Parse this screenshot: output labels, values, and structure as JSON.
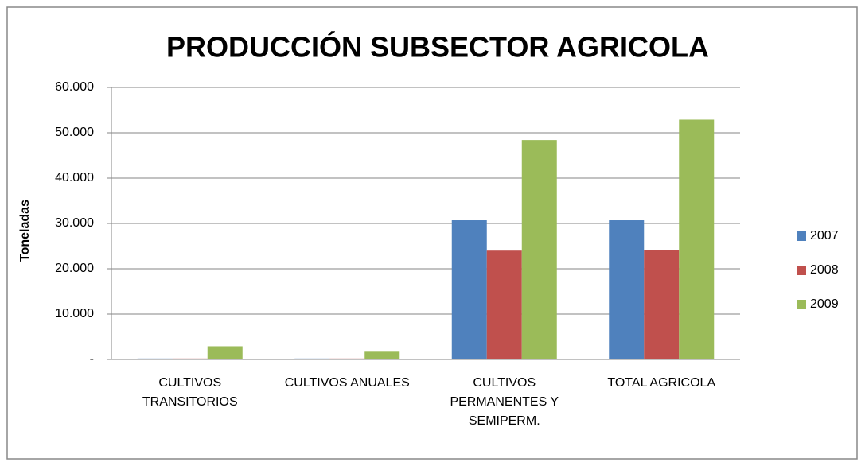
{
  "chart_data": {
    "type": "bar",
    "title": "PRODUCCIÓN  SUBSECTOR  AGRICOLA",
    "y_label": "Toneladas",
    "categories": [
      "CULTIVOS TRANSITORIOS",
      "CULTIVOS ANUALES",
      "CULTIVOS PERMANENTES Y SEMIPERM.",
      "TOTAL AGRICOLA"
    ],
    "series": [
      {
        "name": "2007",
        "color": "#4f81bd",
        "values": [
          200,
          200,
          30700,
          30700
        ]
      },
      {
        "name": "2008",
        "color": "#c0504d",
        "values": [
          200,
          200,
          24000,
          24200
        ]
      },
      {
        "name": "2009",
        "color": "#9bbb59",
        "values": [
          2900,
          1700,
          48400,
          52900
        ]
      }
    ],
    "ylim": [
      0,
      60000
    ],
    "yticks": [
      {
        "value": 0,
        "label": "-"
      },
      {
        "value": 10000,
        "label": "10.000"
      },
      {
        "value": 20000,
        "label": "20.000"
      },
      {
        "value": 30000,
        "label": "30.000"
      },
      {
        "value": 40000,
        "label": "40.000"
      },
      {
        "value": 50000,
        "label": "50.000"
      },
      {
        "value": 60000,
        "label": "60.000"
      }
    ],
    "grid": true,
    "legend": "right"
  }
}
